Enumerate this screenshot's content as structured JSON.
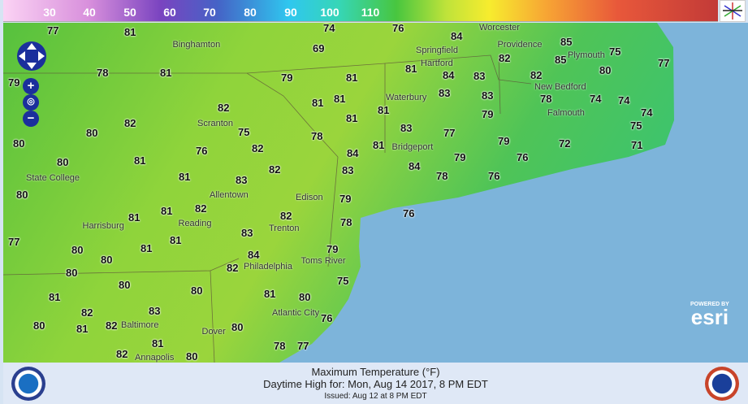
{
  "legend": {
    "ticks": [
      "30",
      "40",
      "50",
      "60",
      "70",
      "80",
      "90",
      "100",
      "110"
    ]
  },
  "map": {
    "temperatures": [
      "77",
      "81",
      "74",
      "76",
      "84",
      "85",
      "75",
      "77",
      "82",
      "85",
      "80",
      "79",
      "78",
      "81",
      "69",
      "79",
      "81",
      "81",
      "84",
      "83",
      "82",
      "83",
      "83",
      "81",
      "81",
      "81",
      "81",
      "79",
      "78",
      "74",
      "74",
      "74",
      "75",
      "82",
      "82",
      "80",
      "75",
      "80",
      "78",
      "83",
      "77",
      "82",
      "76",
      "81",
      "84",
      "81",
      "79",
      "72",
      "71",
      "80",
      "81",
      "82",
      "83",
      "83",
      "84",
      "79",
      "76",
      "78",
      "76",
      "80",
      "82",
      "81",
      "81",
      "82",
      "79",
      "78",
      "76",
      "77",
      "80",
      "80",
      "81",
      "81",
      "83",
      "84",
      "79",
      "80",
      "82",
      "80",
      "80",
      "81",
      "75",
      "81",
      "80",
      "82",
      "83",
      "76",
      "80",
      "81",
      "82",
      "81",
      "80",
      "82",
      "78",
      "77",
      "80"
    ],
    "cities": [
      "Binghamton",
      "Scranton",
      "Springfield",
      "Worcester",
      "Hartford",
      "Waterbury",
      "Providence",
      "New Bedford",
      "Plymouth",
      "Falmouth",
      "Bridgeport",
      "State College",
      "Allentown",
      "Edison",
      "Reading",
      "Harrisburg",
      "Trenton",
      "Philadelphia",
      "Toms River",
      "Atlantic City",
      "Baltimore",
      "Dover",
      "Annapolis"
    ],
    "controls": {
      "zoom_in": "+",
      "zoom_out": "−"
    },
    "attribution": {
      "powered_by": "POWERED BY",
      "brand": "esri"
    },
    "colors": {
      "ocean": "#7db4da",
      "land": "#5cc443"
    }
  },
  "footer": {
    "title": "Maximum Temperature (°F)",
    "subtitle": "Daytime High for: Mon, Aug 14 2017,   8 PM EDT",
    "issued": "Issued: Aug 12 at 8 PM EDT",
    "left_logo": "NOAA",
    "right_logo": "National Weather Service"
  }
}
